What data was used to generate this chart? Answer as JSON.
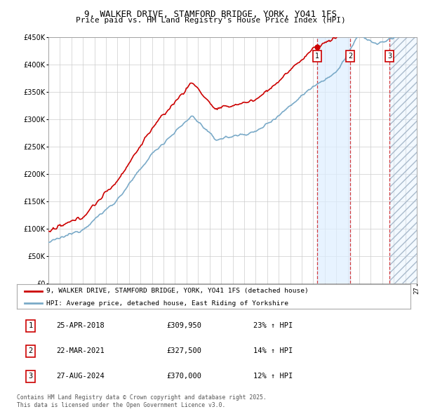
{
  "title": "9, WALKER DRIVE, STAMFORD BRIDGE, YORK, YO41 1FS",
  "subtitle": "Price paid vs. HM Land Registry's House Price Index (HPI)",
  "legend_line1": "9, WALKER DRIVE, STAMFORD BRIDGE, YORK, YO41 1FS (detached house)",
  "legend_line2": "HPI: Average price, detached house, East Riding of Yorkshire",
  "footer1": "Contains HM Land Registry data © Crown copyright and database right 2025.",
  "footer2": "This data is licensed under the Open Government Licence v3.0.",
  "transactions": [
    {
      "label": "1",
      "date": "25-APR-2018",
      "price": "£309,950",
      "hpi": "23% ↑ HPI",
      "year": 2018.32
    },
    {
      "label": "2",
      "date": "22-MAR-2021",
      "price": "£327,500",
      "hpi": "14% ↑ HPI",
      "year": 2021.22
    },
    {
      "label": "3",
      "date": "27-AUG-2024",
      "price": "£370,000",
      "hpi": "12% ↑ HPI",
      "year": 2024.65
    }
  ],
  "xmin": 1995,
  "xmax": 2027,
  "ymin": 0,
  "ymax": 450000,
  "yticks": [
    0,
    50000,
    100000,
    150000,
    200000,
    250000,
    300000,
    350000,
    400000,
    450000
  ],
  "red_line_color": "#cc0000",
  "blue_line_color": "#7aaac8",
  "shade_color": "#ddeeff",
  "hatch_color": "#c0d8ee",
  "dashed_line_color": "#cc0000",
  "background_color": "#ffffff",
  "grid_color": "#cccccc"
}
